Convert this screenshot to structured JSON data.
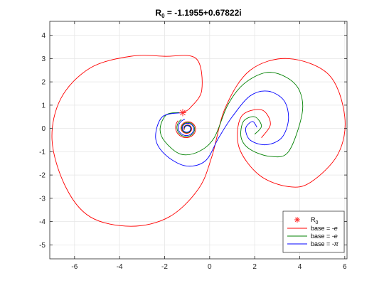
{
  "chart_data": {
    "type": "line",
    "title": {
      "main": "R",
      "subscript": "0",
      "rest": " = -1.1955+0.67822i"
    },
    "xlabel": "",
    "ylabel": "",
    "xlim": [
      -7.1,
      6.1
    ],
    "ylim": [
      -5.6,
      4.6
    ],
    "xticks": [
      -6,
      -4,
      -2,
      0,
      2,
      4,
      6
    ],
    "yticks": [
      -5,
      -4,
      -3,
      -2,
      -1,
      0,
      1,
      2,
      3,
      4
    ],
    "grid": true,
    "legend_position": "bottom-right",
    "marker": {
      "name": "R",
      "subscript": "0",
      "x": -1.1955,
      "y": 0.67822,
      "color": "#ff2a2a",
      "symbol": "asterisk"
    },
    "spiral_centers": {
      "left": [
        -1.0,
        0.0
      ],
      "right": [
        2.0,
        0.0
      ]
    },
    "series": [
      {
        "name": "base = -e",
        "name_prefix": "base = ",
        "name_value": "-e",
        "color": "#ff0000",
        "points": [
          [
            -1.195,
            0.678
          ],
          [
            -0.86,
            0.89
          ],
          [
            -0.35,
            1.65
          ],
          [
            -0.6,
            3.0
          ],
          [
            -2.0,
            3.1
          ],
          [
            -3.5,
            3.1
          ],
          [
            -5.3,
            2.6
          ],
          [
            -6.6,
            1.3
          ],
          [
            -7.0,
            -0.5
          ],
          [
            -6.4,
            -2.5
          ],
          [
            -5.3,
            -3.8
          ],
          [
            -3.5,
            -4.2
          ],
          [
            -1.8,
            -3.8
          ],
          [
            -0.5,
            -2.6
          ],
          [
            0.1,
            -1.2
          ],
          [
            0.7,
            0.9
          ],
          [
            1.8,
            2.5
          ],
          [
            3.5,
            3.0
          ],
          [
            5.3,
            2.3
          ],
          [
            6.0,
            0.5
          ],
          [
            5.7,
            -1.1
          ],
          [
            4.5,
            -2.3
          ],
          [
            3.5,
            -2.5
          ],
          [
            2.2,
            -2.0
          ],
          [
            1.3,
            -0.8
          ],
          [
            1.4,
            0.5
          ],
          [
            2.3,
            0.8
          ],
          [
            2.7,
            0.2
          ],
          [
            2.3,
            -0.4
          ]
        ]
      },
      {
        "name": "base = -e",
        "name_prefix": "base = ",
        "name_value": "-e",
        "color": "#008000",
        "points": [
          [
            -1.195,
            0.678
          ],
          [
            -1.9,
            0.6
          ],
          [
            -2.2,
            0.0
          ],
          [
            -2.0,
            -0.55
          ],
          [
            -1.3,
            -1.1
          ],
          [
            -0.5,
            -1.0
          ],
          [
            0.2,
            -0.4
          ],
          [
            0.8,
            1.0
          ],
          [
            1.5,
            1.9
          ],
          [
            2.5,
            2.4
          ],
          [
            3.4,
            2.2
          ],
          [
            4.0,
            1.6
          ],
          [
            4.1,
            0.6
          ],
          [
            3.5,
            -1.0
          ],
          [
            2.7,
            -1.2
          ],
          [
            1.8,
            -0.9
          ],
          [
            1.4,
            -0.4
          ],
          [
            1.5,
            0.3
          ],
          [
            2.0,
            0.5
          ],
          [
            2.3,
            0.1
          ],
          [
            2.0,
            -0.25
          ]
        ]
      },
      {
        "name": "base = -π",
        "name_prefix": "base = ",
        "name_value": "-π",
        "color": "#0000ff",
        "points": [
          [
            -1.195,
            0.678
          ],
          [
            -2.1,
            0.5
          ],
          [
            -2.4,
            -0.4
          ],
          [
            -2.0,
            -1.1
          ],
          [
            -1.1,
            -1.6
          ],
          [
            -0.2,
            -1.4
          ],
          [
            0.4,
            -0.4
          ],
          [
            1.0,
            0.5
          ],
          [
            1.8,
            1.4
          ],
          [
            2.6,
            1.6
          ],
          [
            3.3,
            1.2
          ],
          [
            3.5,
            0.4
          ],
          [
            3.2,
            -0.4
          ],
          [
            2.5,
            -0.7
          ],
          [
            1.8,
            -0.5
          ],
          [
            1.6,
            0.0
          ],
          [
            1.9,
            0.3
          ],
          [
            2.1,
            0.05
          ]
        ]
      }
    ]
  }
}
